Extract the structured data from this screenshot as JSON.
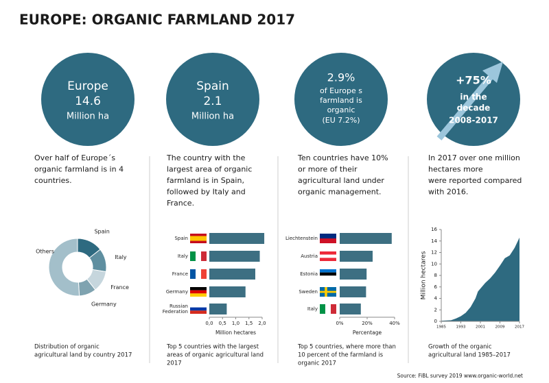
{
  "title": "EUROPE: ORGANIC FARMLAND 2017",
  "panels": [
    {
      "circle": [
        "Europe",
        "14.6",
        "Million ha"
      ],
      "text": [
        "Over half of Europe´s",
        "organic farmland is in 4",
        "countries."
      ],
      "caption": [
        "Distribution of organic",
        "agricultural land by country 2017"
      ]
    },
    {
      "circle": [
        "Spain",
        "2.1",
        "Million ha"
      ],
      "text": [
        "The country with the",
        "largest area of organic",
        "farmland is in Spain,",
        "followed by Italy and",
        "France."
      ],
      "caption": [
        "Top 5 countries with the largest",
        "areas of organic agricultural land",
        "2017"
      ]
    },
    {
      "circle": [
        "2.9%",
        "of Europe s",
        "farmland is",
        "organic",
        "(EU 7.2%)"
      ],
      "text": [
        "Ten countries have 10%",
        "or more of their",
        "agricultural land under",
        "organic management."
      ],
      "caption": [
        "Top 5 countries, where more than",
        "10  percent of the farmland is",
        "organic 2017"
      ]
    },
    {
      "circle": [
        "+75%",
        "in the",
        "decade",
        "2008-2017"
      ],
      "text": [
        "In 2017 over one million",
        "hectares more",
        "were reported compared",
        "with 2016."
      ],
      "caption": [
        "Growth of the organic",
        "agricultural land 1985–2017"
      ]
    }
  ],
  "chart_data": [
    {
      "type": "pie",
      "categories": [
        "Spain",
        "Italy",
        "France",
        "Germany",
        "Others"
      ],
      "values": [
        14.4,
        13.1,
        11.9,
        9.6,
        51.0
      ],
      "colors": [
        "#2e6a80",
        "#5f8fa0",
        "#c6d6dd",
        "#7fa3b0",
        "#a3bfca"
      ]
    },
    {
      "type": "hbar",
      "categories": [
        "Spain",
        "Italy",
        "France",
        "Germany",
        "Russian Federation"
      ],
      "values": [
        2.08,
        1.91,
        1.74,
        1.37,
        0.66
      ],
      "color": "#3d6f82",
      "xlim": [
        0,
        2
      ],
      "xticks": [
        {
          "value": 0,
          "label": "0,0"
        },
        {
          "value": 0.5,
          "label": "0,5"
        },
        {
          "value": 1,
          "label": "1,0"
        },
        {
          "value": 1.5,
          "label": "1,5"
        },
        {
          "value": 2,
          "label": "2,0"
        }
      ],
      "xlabel": "Million hectares"
    },
    {
      "type": "hbar",
      "categories": [
        "Liechtenstein",
        "Austria",
        "Estonia",
        "Sweden",
        "Italy"
      ],
      "values": [
        37.9,
        24.0,
        19.6,
        19.2,
        15.4
      ],
      "color": "#3d6f82",
      "xlim": [
        0,
        40
      ],
      "xticks": [
        {
          "value": 0,
          "label": "0%"
        },
        {
          "value": 20,
          "label": "20%"
        },
        {
          "value": 40,
          "label": "40%"
        }
      ],
      "xlabel": "Percentage"
    },
    {
      "type": "area",
      "color": "#2e6a80",
      "x": [
        1985,
        1987,
        1989,
        1991,
        1993,
        1995,
        1997,
        1999,
        2000,
        2001,
        2003,
        2005,
        2007,
        2009,
        2011,
        2013,
        2015,
        2017
      ],
      "values": [
        0.1,
        0.15,
        0.2,
        0.5,
        0.9,
        1.5,
        2.5,
        4.0,
        5.2,
        5.7,
        6.7,
        7.5,
        8.5,
        9.7,
        11.0,
        11.5,
        12.8,
        14.6
      ],
      "xlim": [
        1985,
        2017
      ],
      "xticks": [
        1985,
        1993,
        2001,
        2009,
        2017
      ],
      "ylim": [
        0,
        16
      ],
      "yticks": [
        0,
        2,
        4,
        6,
        8,
        10,
        12,
        14,
        16
      ],
      "ylabel": "Million hectares"
    }
  ],
  "source": "Source: FiBL survey 2019 www.organic-world.net"
}
